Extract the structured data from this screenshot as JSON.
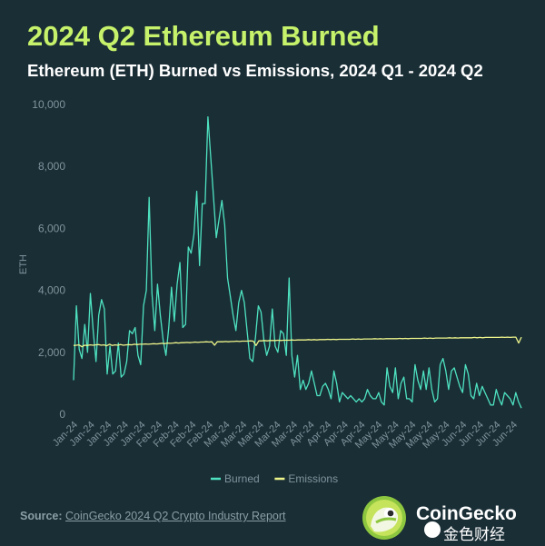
{
  "header": {
    "title": "2024 Q2 Ethereum Burned",
    "subtitle": "Ethereum (ETH) Burned vs Emissions, 2024 Q1 - 2024 Q2"
  },
  "footer": {
    "source_label": "Source:",
    "source_text": "CoinGecko 2024 Q2 Crypto Industry Report",
    "brand": "CoinGecko",
    "watermark": "金色财经"
  },
  "colors": {
    "background": "#1a2e36",
    "title": "#c5f26a",
    "burned": "#4ee2c0",
    "emissions": "#eef58a",
    "axis_text": "#7f949c"
  },
  "chart_data": {
    "type": "line",
    "ylabel": "ETH",
    "xlabel": "",
    "ylim": [
      0,
      10000
    ],
    "yticks": [
      0,
      2000,
      4000,
      6000,
      8000,
      10000
    ],
    "grid": false,
    "legend_position": "bottom",
    "x_tick_labels": [
      "Jan-24",
      "Jan-24",
      "Jan-24",
      "Jan-24",
      "Jan-24",
      "Feb-24",
      "Feb-24",
      "Feb-24",
      "Feb-24",
      "Mar-24",
      "Mar-24",
      "Mar-24",
      "Mar-24",
      "Mar-24",
      "Apr-24",
      "Apr-24",
      "Apr-24",
      "Apr-24",
      "May-24",
      "May-24",
      "May-24",
      "May-24",
      "May-24",
      "Jun-24",
      "Jun-24",
      "Jun-24",
      "Jun-24"
    ],
    "series": [
      {
        "name": "Burned",
        "color": "#4ee2c0",
        "values": [
          1100,
          3500,
          2100,
          1800,
          2900,
          2000,
          3900,
          2700,
          1700,
          3200,
          3700,
          3400,
          1300,
          2200,
          1300,
          1400,
          2300,
          1200,
          1300,
          1700,
          2700,
          2600,
          2800,
          1900,
          1600,
          3500,
          4000,
          7000,
          3900,
          2700,
          4200,
          3200,
          2400,
          1900,
          2800,
          4100,
          3000,
          4200,
          4900,
          2800,
          2900,
          5400,
          5200,
          5800,
          7200,
          4800,
          6800,
          6800,
          9600,
          8300,
          7000,
          5700,
          6300,
          6900,
          6100,
          4400,
          3800,
          3200,
          2700,
          3600,
          4000,
          3600,
          2700,
          1800,
          1700,
          2500,
          3500,
          3300,
          2400,
          1900,
          2200,
          3400,
          2200,
          2000,
          2700,
          2600,
          1900,
          4400,
          1900,
          1200,
          1900,
          800,
          1100,
          800,
          1000,
          1400,
          1000,
          600,
          600,
          900,
          1000,
          800,
          500,
          1400,
          1000,
          400,
          700,
          600,
          500,
          600,
          500,
          400,
          500,
          400,
          500,
          800,
          600,
          500,
          500,
          700,
          400,
          300,
          1500,
          900,
          700,
          1500,
          500,
          1000,
          1200,
          500,
          500,
          400,
          1600,
          1100,
          800,
          1400,
          800,
          1500,
          800,
          400,
          500,
          1600,
          1800,
          1400,
          800,
          1400,
          1500,
          1200,
          900,
          700,
          1600,
          1300,
          600,
          500,
          1000,
          600,
          900,
          700,
          500,
          300,
          300,
          800,
          500,
          300,
          700,
          600,
          500,
          300,
          700,
          400,
          200
        ]
      },
      {
        "name": "Emissions",
        "color": "#eef58a",
        "values": [
          2220,
          2230,
          2240,
          2180,
          2230,
          2220,
          2240,
          2230,
          2240,
          2250,
          2230,
          2240,
          2210,
          2260,
          2220,
          2240,
          2230,
          2250,
          2230,
          2240,
          2250,
          2240,
          2260,
          2250,
          2260,
          2260,
          2270,
          2260,
          2270,
          2280,
          2270,
          2280,
          2290,
          2280,
          2300,
          2290,
          2300,
          2310,
          2300,
          2310,
          2310,
          2320,
          2310,
          2320,
          2330,
          2320,
          2330,
          2330,
          2340,
          2330,
          2340,
          2230,
          2340,
          2340,
          2340,
          2350,
          2340,
          2350,
          2350,
          2360,
          2350,
          2360,
          2360,
          2360,
          2370,
          2360,
          2220,
          2370,
          2370,
          2380,
          2370,
          2380,
          2380,
          2380,
          2390,
          2380,
          2390,
          2390,
          2390,
          2400,
          2390,
          2400,
          2400,
          2400,
          2400,
          2410,
          2400,
          2410,
          2400,
          2410,
          2410,
          2410,
          2420,
          2410,
          2420,
          2410,
          2420,
          2420,
          2420,
          2420,
          2420,
          2430,
          2420,
          2430,
          2420,
          2430,
          2430,
          2430,
          2430,
          2440,
          2430,
          2440,
          2430,
          2440,
          2440,
          2440,
          2440,
          2440,
          2450,
          2440,
          2450,
          2440,
          2450,
          2450,
          2450,
          2450,
          2450,
          2460,
          2450,
          2460,
          2450,
          2460,
          2460,
          2460,
          2460,
          2460,
          2470,
          2460,
          2470,
          2460,
          2470,
          2470,
          2470,
          2470,
          2470,
          2480,
          2470,
          2480,
          2470,
          2480,
          2480,
          2480,
          2480,
          2480,
          2480,
          2490,
          2480,
          2490,
          2480,
          2490,
          2490,
          2300,
          2490
        ]
      }
    ]
  }
}
